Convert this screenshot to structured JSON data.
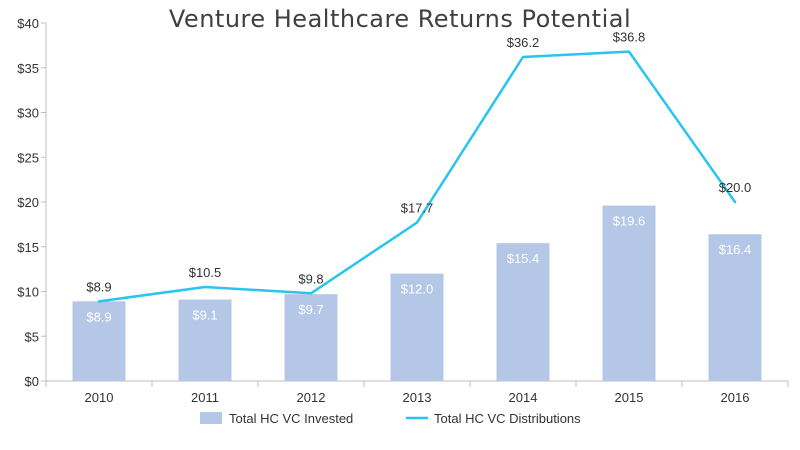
{
  "chart_data": {
    "type": "bar",
    "title": "Venture Healthcare Returns Potential",
    "xlabel": "",
    "ylabel": "",
    "categories": [
      "2010",
      "2011",
      "2012",
      "2013",
      "2014",
      "2015",
      "2016"
    ],
    "ylim": [
      0,
      40
    ],
    "yticks": [
      0,
      5,
      10,
      15,
      20,
      25,
      30,
      35,
      40
    ],
    "ytick_labels": [
      "$0",
      "$5",
      "$10",
      "$15",
      "$20",
      "$25",
      "$30",
      "$35",
      "$40"
    ],
    "grid": false,
    "legend_position": "bottom",
    "series": [
      {
        "name": "Total HC VC Invested",
        "type": "bar",
        "color": "#b4c7e7",
        "values": [
          8.9,
          9.1,
          9.7,
          12.0,
          15.4,
          19.6,
          16.4
        ],
        "labels": [
          "$8.9",
          "$9.1",
          "$9.7",
          "$12.0",
          "$15.4",
          "$19.6",
          "$16.4"
        ]
      },
      {
        "name": "Total HC VC Distributions",
        "type": "line",
        "color": "#29c5ef",
        "values": [
          8.9,
          10.5,
          9.8,
          17.7,
          36.2,
          36.8,
          20.0
        ],
        "labels": [
          "$8.9",
          "$10.5",
          "$9.8",
          "$17.7",
          "$36.2",
          "$36.8",
          "$20.0"
        ]
      }
    ]
  }
}
